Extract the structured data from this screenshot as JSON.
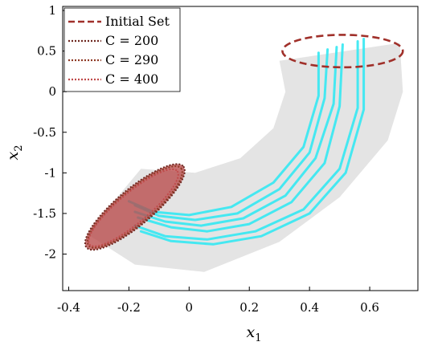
{
  "chart_data": {
    "type": "line",
    "xlabel": "x",
    "xlabel_sub": "1",
    "ylabel": "x",
    "ylabel_sub": "2",
    "xlim": [
      -0.42,
      0.76
    ],
    "ylim": [
      -2.45,
      1.05
    ],
    "xticks": [
      -0.4,
      -0.2,
      0,
      0.2,
      0.4,
      0.6
    ],
    "xtick_labels": [
      "-0.4",
      "-0.2",
      "0",
      "0.2",
      "0.4",
      "0.6"
    ],
    "yticks": [
      1,
      0.5,
      0,
      -0.5,
      -1,
      -1.5,
      -2
    ],
    "ytick_labels": [
      "1",
      "0.5",
      "0",
      "-0.5",
      "-1",
      "-1.5",
      "-2"
    ],
    "grid": false,
    "legend_position": "top-left",
    "legend": [
      {
        "label": "Initial Set",
        "style": "dashed",
        "color": "#a0302a"
      },
      {
        "label": "C = 200",
        "style": "dotted",
        "color": "#6e2820"
      },
      {
        "label": "C = 290",
        "style": "dotted",
        "color": "#8e3a25"
      },
      {
        "label": "C = 400",
        "style": "dotted",
        "color": "#c04a4a"
      }
    ],
    "initial_set": {
      "center": [
        0.51,
        0.5
      ],
      "rx": 0.2,
      "ry": 0.2,
      "color": "#a0302a"
    },
    "final_sets": [
      {
        "name": "C = 200",
        "center": [
          -0.18,
          -1.42
        ],
        "rx": 0.21,
        "ry": 0.06,
        "angle_deg": 40,
        "color": "#6e2820"
      },
      {
        "name": "C = 290",
        "center": [
          -0.18,
          -1.42
        ],
        "rx": 0.2,
        "ry": 0.055,
        "angle_deg": 40,
        "color": "#8e3a25"
      },
      {
        "name": "C = 400",
        "center": [
          -0.185,
          -1.43
        ],
        "rx": 0.19,
        "ry": 0.05,
        "angle_deg": 40,
        "color": "#c04a4a"
      }
    ],
    "final_fill_color": "#b84a4a",
    "reach_region": {
      "outer": [
        [
          0.7,
          0.6
        ],
        [
          0.71,
          0.0
        ],
        [
          0.66,
          -0.6
        ],
        [
          0.5,
          -1.3
        ],
        [
          0.3,
          -1.85
        ],
        [
          0.05,
          -2.22
        ],
        [
          -0.18,
          -2.13
        ],
        [
          -0.34,
          -1.75
        ]
      ],
      "inner": [
        [
          -0.16,
          -0.95
        ],
        [
          0.02,
          -1.0
        ],
        [
          0.17,
          -0.82
        ],
        [
          0.28,
          -0.45
        ],
        [
          0.32,
          0.0
        ],
        [
          0.3,
          0.38
        ]
      ],
      "color": "#e4e4e4"
    },
    "trajectory_color": "#33e8f2",
    "trajectories": [
      {
        "x": [
          0.43,
          0.43,
          0.38,
          0.28,
          0.14,
          0.0,
          -0.12,
          -0.2
        ],
        "y": [
          0.48,
          -0.05,
          -0.68,
          -1.12,
          -1.42,
          -1.52,
          -1.48,
          -1.35
        ]
      },
      {
        "x": [
          0.46,
          0.45,
          0.4,
          0.3,
          0.16,
          0.02,
          -0.1,
          -0.18
        ],
        "y": [
          0.52,
          -0.08,
          -0.75,
          -1.2,
          -1.5,
          -1.58,
          -1.53,
          -1.4
        ]
      },
      {
        "x": [
          0.49,
          0.48,
          0.42,
          0.32,
          0.18,
          0.04,
          -0.08,
          -0.18
        ],
        "y": [
          0.55,
          -0.15,
          -0.82,
          -1.28,
          -1.56,
          -1.65,
          -1.6,
          -1.48
        ]
      },
      {
        "x": [
          0.51,
          0.5,
          0.45,
          0.34,
          0.2,
          0.06,
          -0.06,
          -0.17
        ],
        "y": [
          0.58,
          -0.18,
          -0.88,
          -1.36,
          -1.63,
          -1.72,
          -1.67,
          -1.55
        ]
      },
      {
        "x": [
          0.56,
          0.56,
          0.5,
          0.38,
          0.22,
          0.06,
          -0.08,
          -0.18
        ],
        "y": [
          0.62,
          -0.2,
          -0.95,
          -1.45,
          -1.72,
          -1.82,
          -1.78,
          -1.65
        ]
      },
      {
        "x": [
          0.58,
          0.58,
          0.52,
          0.4,
          0.24,
          0.08,
          -0.06,
          -0.16
        ],
        "y": [
          0.65,
          -0.22,
          -1.0,
          -1.5,
          -1.78,
          -1.88,
          -1.84,
          -1.72
        ]
      }
    ]
  }
}
